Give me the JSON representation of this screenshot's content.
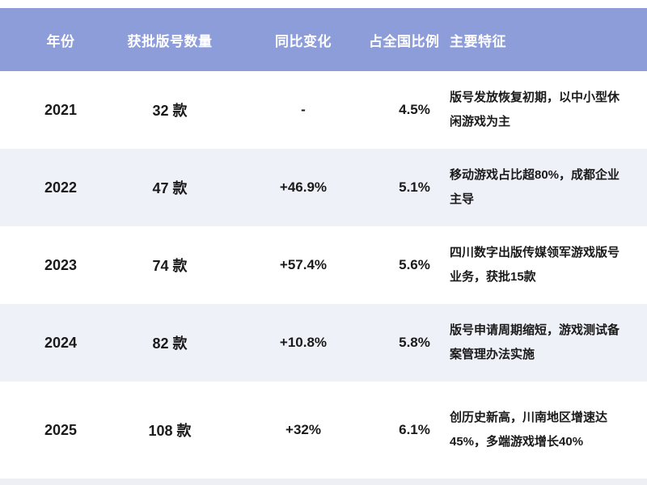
{
  "table": {
    "columns": [
      {
        "key": "year",
        "label": "年份"
      },
      {
        "key": "count",
        "label": "获批版号数量"
      },
      {
        "key": "change",
        "label": "同比变化"
      },
      {
        "key": "share",
        "label": "占全国比例"
      },
      {
        "key": "features",
        "label": "主要特征"
      }
    ],
    "rows": [
      {
        "year": "2021",
        "count": "32 款",
        "change": "-",
        "share": "4.5%",
        "features": "版号发放恢复初期，以中小型休闲游戏为主"
      },
      {
        "year": "2022",
        "count": "47 款",
        "change": "+46.9%",
        "share": "5.1%",
        "features": "移动游戏占比超80%，成都企业主导"
      },
      {
        "year": "2023",
        "count": "74 款",
        "change": "+57.4%",
        "share": "5.6%",
        "features": "四川数字出版传媒领军游戏版号业务，获批15款"
      },
      {
        "year": "2024",
        "count": "82 款",
        "change": "+10.8%",
        "share": "5.8%",
        "features": "版号申请周期缩短，游戏测试备案管理办法实施"
      },
      {
        "year": "2025",
        "count": "108 款",
        "change": "+32%",
        "share": "6.1%",
        "features": "创历史新高，川南地区增速达45%，多端游戏增长40%"
      }
    ]
  },
  "colors": {
    "header_bg": "#8d9dda",
    "header_text": "#ffffff",
    "row_bg": "#ffffff",
    "row_alt_bg": "#eef1f8",
    "text": "#1a1a1a",
    "page_bg": "#ffffff",
    "bottom_strip": "#edeff5"
  }
}
